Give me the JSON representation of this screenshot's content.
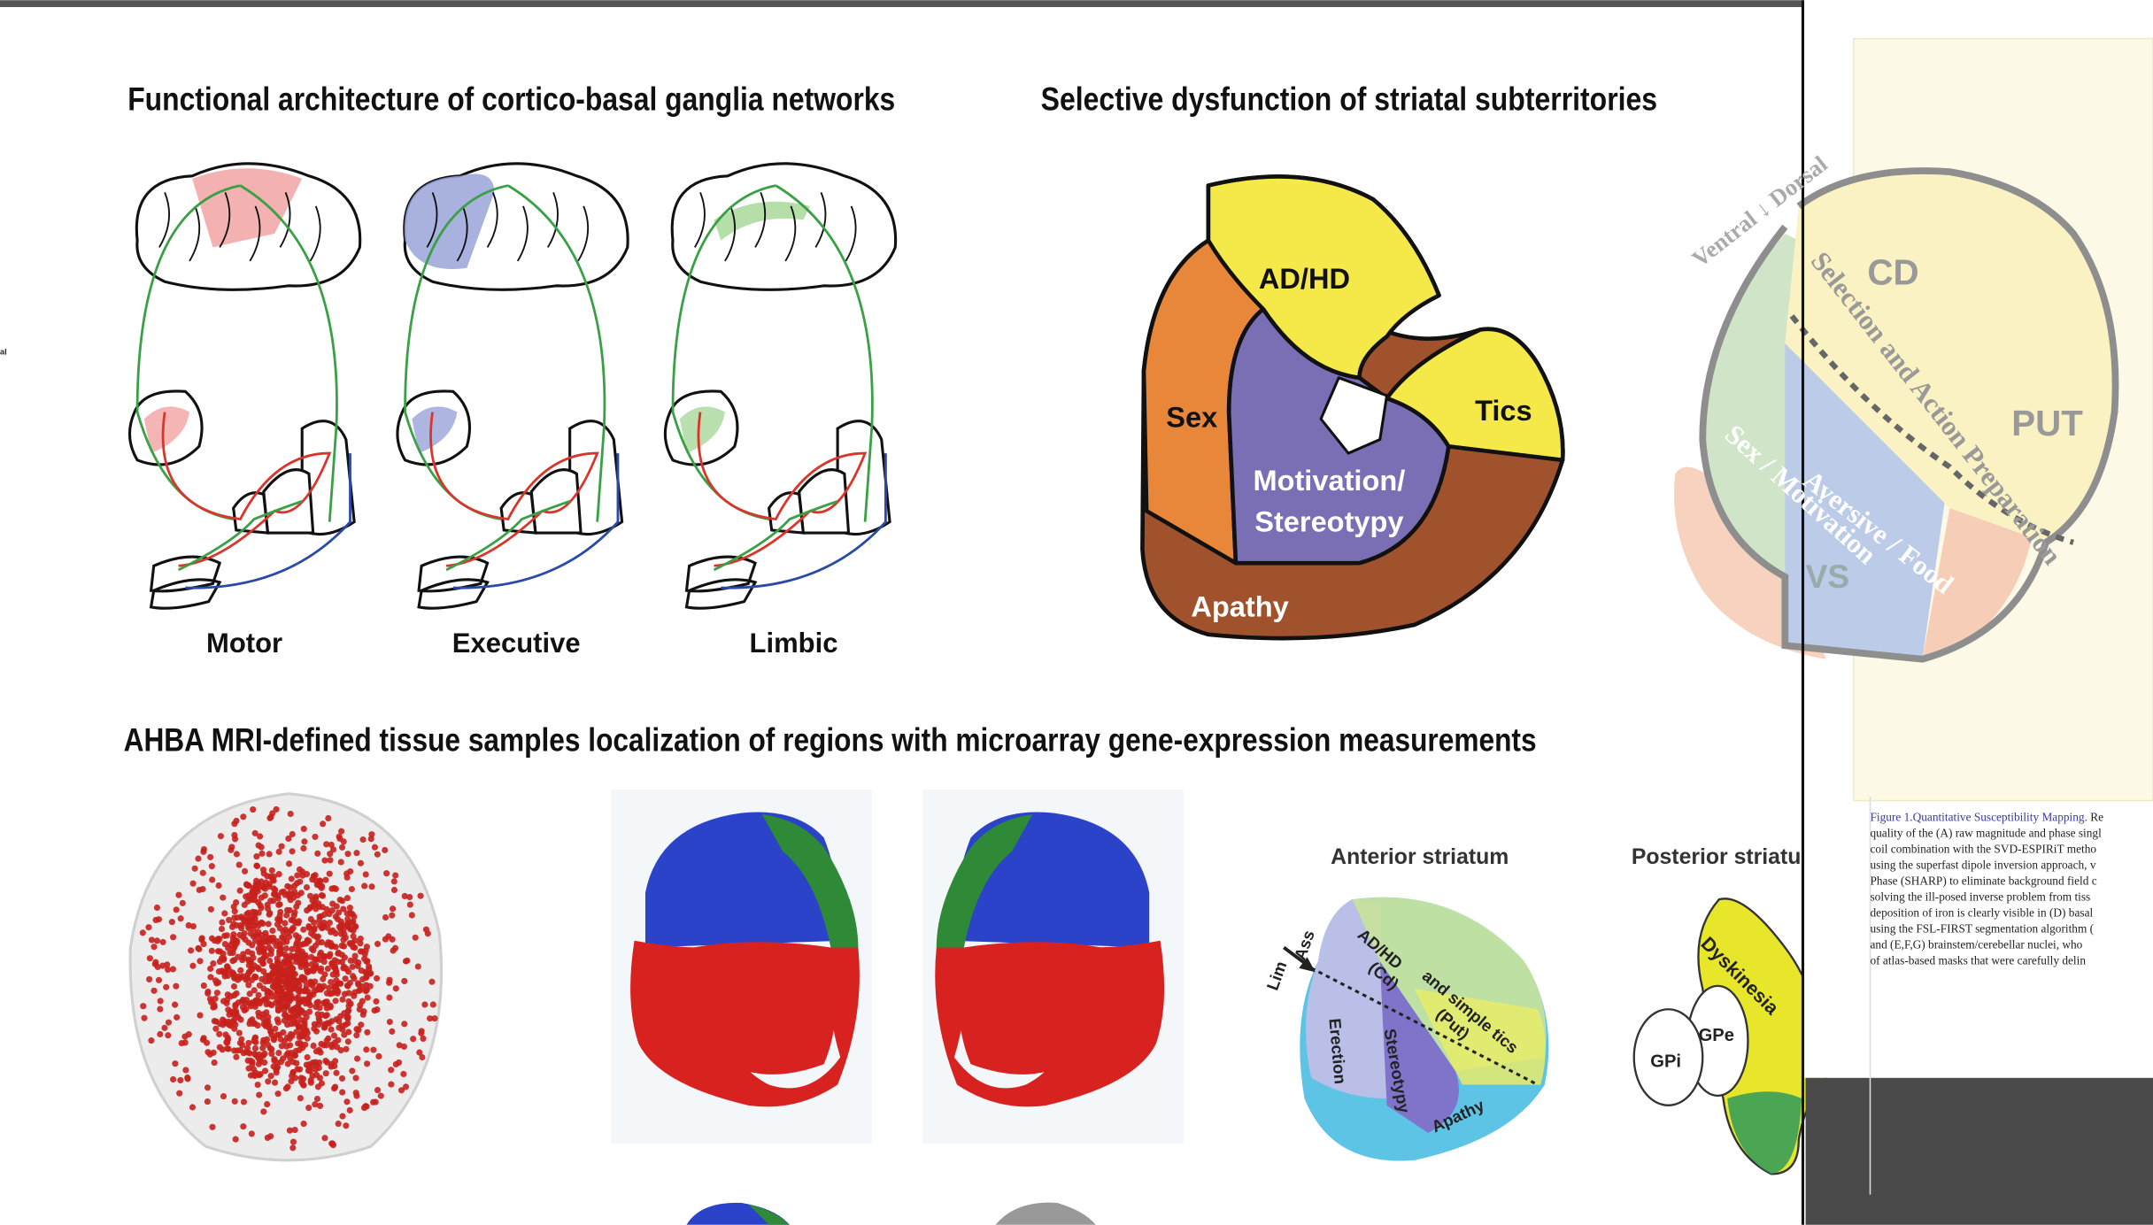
{
  "left_fragment": "al",
  "networks": {
    "title": "Functional architecture of cortico-basal ganglia networks",
    "labels": [
      "Motor",
      "Executive",
      "Limbic"
    ]
  },
  "dysfunction": {
    "title": "Selective dysfunction of striatal subterritories",
    "regions": {
      "adhd": "AD/HD",
      "sex": "Sex",
      "tics": "Tics",
      "motivation": [
        "Motivation/",
        "Stereotypy"
      ],
      "apathy": "Apathy"
    }
  },
  "ahba": {
    "title": "AHBA MRI-defined tissue samples localization of  regions with microarray gene-expression measurements"
  },
  "anterior": {
    "title": "Anterior striatum",
    "labels": {
      "lim": "Lim",
      "ass": "Ass",
      "adhd": [
        "AD/HD",
        "(Cd)"
      ],
      "tics": [
        "and simple tics",
        "(Put)"
      ],
      "erection": "Erection",
      "stereotypy": "Stereotypy",
      "apathy": "Apathy"
    }
  },
  "posterior": {
    "title": "Posterior striatum",
    "labels": {
      "dyskinesia": "Dyskinesia",
      "gpe": "GPe",
      "gpi": "GPi"
    }
  },
  "overlay": {
    "axis": "Ventral ↓ Dorsal",
    "cd": "CD",
    "put": "PUT",
    "vs": "VS",
    "selection": "Selection  and  Action  Preparation",
    "limbic": [
      "Sex  /  Motivation",
      "Aversive  /  Food"
    ]
  },
  "caption": {
    "heading": "Figure 1.Quantitative Susceptibility Mapping.",
    "lines": [
      " Re",
      "quality of the (A) raw magnitude and phase singl",
      "coil combination with the SVD-ESPIRiT metho",
      "using the superfast dipole inversion approach, v",
      "Phase (SHARP) to eliminate background field c",
      "solving the ill-posed inverse problem from tiss",
      "deposition of iron is clearly visible in (D) basal",
      "using the FSL-FIRST segmentation algorithm (",
      "and (E,F,G) brainstem/cerebellar nuclei, who",
      "of atlas-based masks that were carefully delin"
    ]
  }
}
